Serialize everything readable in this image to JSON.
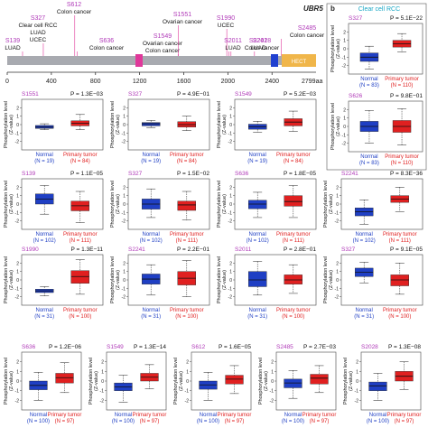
{
  "figure": {
    "gene": "UBR5",
    "panel_b_label": "b",
    "panel_b_title": "Clear cell RCC",
    "axis_end_label": "2799aa",
    "domain_label": "HECT"
  },
  "colors": {
    "site": "#b03ab8",
    "normal": "#1f3fc4",
    "tumor": "#e02020",
    "hect": "#f0b64a",
    "domain_blue": "#2040d0",
    "domain_pink": "#e0389a",
    "protein_bar": "#a8aab0",
    "cyan_title": "#17a6c4"
  },
  "mutation_sites": [
    {
      "site": "S139",
      "cancers": [
        "LUAD"
      ],
      "pos": 139
    },
    {
      "site": "S327",
      "cancers": [
        "Clear cell RCC",
        "LUAD",
        "UCEC"
      ],
      "pos": 327
    },
    {
      "site": "S612",
      "cancers": [
        "Colon cancer"
      ],
      "pos": 612
    },
    {
      "site": "S636",
      "cancers": [
        "Colon cancer"
      ],
      "pos": 636
    },
    {
      "site": "S1549",
      "cancers": [
        "Ovarian cancer",
        "Colon cancer"
      ],
      "pos": 1549
    },
    {
      "site": "S1551",
      "cancers": [
        "Ovarian cancer"
      ],
      "pos": 1551
    },
    {
      "site": "S1990",
      "cancers": [
        "UCEC"
      ],
      "pos": 1990
    },
    {
      "site": "S2011",
      "cancers": [
        "LUAD"
      ],
      "pos": 2011
    },
    {
      "site": "S2028",
      "cancers": [
        "Colon cancer"
      ],
      "pos": 2028
    },
    {
      "site": "S2241",
      "cancers": [
        "LUAD"
      ],
      "pos": 2241
    },
    {
      "site": "S2485",
      "cancers": [
        "Colon cancer"
      ],
      "pos": 2485
    }
  ],
  "chart_data": {
    "type": "box",
    "ylabel": "Phosphorylation level (Z-value)",
    "ylim": [
      -3,
      3
    ],
    "yticks": [
      -2,
      -1,
      0,
      1,
      2
    ],
    "protein_axis": {
      "ticks": [
        0,
        400,
        800,
        1200,
        1600,
        2000,
        2400
      ],
      "end": "2799aa"
    },
    "panels": [
      {
        "site": "S1551",
        "p": "1.3E−03",
        "normal_n": "N = 19",
        "tumor_n": "N = 84",
        "tumor_label": "Primary tumor",
        "normal_box": [
          -0.6,
          -0.45,
          -0.3,
          -0.1,
          0.1
        ],
        "tumor_box": [
          -0.6,
          -0.15,
          0.15,
          0.45,
          1.2
        ]
      },
      {
        "site": "S327",
        "p": "4.9E−01",
        "normal_n": "N = 19",
        "tumor_n": "N = 84",
        "tumor_label": "Primary tumor",
        "normal_box": [
          -0.4,
          -0.15,
          0.1,
          0.25,
          0.5
        ],
        "tumor_box": [
          -0.7,
          -0.3,
          0.0,
          0.35,
          1.0
        ]
      },
      {
        "site": "S1549",
        "p": "5.2E−03",
        "normal_n": "N = 19",
        "tumor_n": "N = 84",
        "tumor_label": "Primary tumor",
        "normal_box": [
          -0.9,
          -0.55,
          -0.25,
          0.05,
          0.4
        ],
        "tumor_box": [
          -0.8,
          -0.15,
          0.3,
          0.7,
          1.6
        ]
      },
      {
        "site": "S139",
        "p": "1.1E−05",
        "normal_n": "N = 102",
        "tumor_n": "N = 111",
        "tumor_label": "Primary tumor",
        "normal_box": [
          -1.2,
          0.0,
          0.6,
          1.2,
          2.2
        ],
        "tumor_box": [
          -2.2,
          -0.8,
          -0.2,
          0.35,
          1.5
        ]
      },
      {
        "site": "S327",
        "p": "1.5E−02",
        "normal_n": "N = 102",
        "tumor_n": "N = 111",
        "tumor_label": "Primary tumor",
        "normal_box": [
          -1.6,
          -0.6,
          0.0,
          0.6,
          1.8
        ],
        "tumor_box": [
          -1.9,
          -0.75,
          -0.1,
          0.35,
          1.5
        ]
      },
      {
        "site": "S636",
        "p": "1.8E−05",
        "normal_n": "N = 102",
        "tumor_n": "N = 111",
        "tumor_label": "Primary tumor",
        "normal_box": [
          -1.6,
          -0.55,
          0.0,
          0.45,
          1.4
        ],
        "tumor_box": [
          -1.6,
          -0.25,
          0.3,
          1.0,
          2.2
        ]
      },
      {
        "site": "S2241",
        "p": "8.3E−36",
        "normal_n": "N = 102",
        "tumor_n": "N = 111",
        "tumor_label": "Primary tumor",
        "normal_box": [
          -2.4,
          -1.4,
          -0.9,
          -0.45,
          0.5
        ],
        "tumor_box": [
          -0.9,
          0.2,
          0.6,
          1.0,
          2.0
        ]
      },
      {
        "site": "S1990",
        "p": "1.3E−11",
        "normal_n": "N = 31",
        "tumor_n": "N = 100",
        "tumor_label": "Primary tumor",
        "normal_box": [
          -1.9,
          -1.5,
          -1.3,
          -1.1,
          -0.8
        ],
        "tumor_box": [
          -1.7,
          -0.4,
          0.4,
          1.1,
          2.4
        ]
      },
      {
        "site": "S2241",
        "p": "2.2E−01",
        "normal_n": "N = 31",
        "tumor_n": "N = 100",
        "tumor_label": "Primary tumor",
        "normal_box": [
          -1.8,
          -0.5,
          0.1,
          0.7,
          1.8
        ],
        "tumor_box": [
          -2.0,
          -0.6,
          0.2,
          1.0,
          2.3
        ]
      },
      {
        "site": "S2011",
        "p": "2.8E−01",
        "normal_n": "N = 31",
        "tumor_n": "N = 100",
        "tumor_label": "Primary tumor",
        "normal_box": [
          -1.8,
          -0.8,
          0.0,
          1.0,
          2.2
        ],
        "tumor_box": [
          -1.6,
          -0.5,
          0.0,
          0.6,
          1.8
        ]
      },
      {
        "site": "S327",
        "p": "9.1E−05",
        "normal_n": "N = 31",
        "tumor_n": "N = 100",
        "tumor_label": "Primary tumor",
        "normal_box": [
          -0.4,
          0.4,
          0.9,
          1.4,
          2.1
        ],
        "tumor_box": [
          -1.7,
          -0.7,
          0.0,
          0.6,
          2.0
        ]
      },
      {
        "site": "S636",
        "p": "1.2E−06",
        "normal_n": "N = 100",
        "tumor_n": "N = 97",
        "tumor_label": "Primary tumor",
        "normal_box": [
          -2.0,
          -0.9,
          -0.45,
          0.0,
          0.9
        ],
        "tumor_box": [
          -1.2,
          -0.2,
          0.35,
          0.8,
          1.9
        ]
      },
      {
        "site": "S1549",
        "p": "1.3E−14",
        "normal_n": "N = 100",
        "tumor_n": "N = 97",
        "tumor_label": "Primary tumor",
        "normal_box": [
          -2.2,
          -1.0,
          -0.6,
          -0.2,
          0.6
        ],
        "tumor_box": [
          -0.8,
          0.0,
          0.4,
          0.8,
          1.7
        ]
      },
      {
        "site": "S612",
        "p": "1.6E−05",
        "normal_n": "N = 100",
        "tumor_n": "N = 97",
        "tumor_label": "Primary tumor",
        "normal_box": [
          -2.0,
          -0.85,
          -0.4,
          0.0,
          0.9
        ],
        "tumor_box": [
          -1.3,
          -0.3,
          0.2,
          0.6,
          1.6
        ]
      },
      {
        "site": "S2485",
        "p": "2.7E−03",
        "normal_n": "N = 100",
        "tumor_n": "N = 97",
        "tumor_label": "Primary tumor",
        "normal_box": [
          -1.8,
          -0.7,
          -0.2,
          0.2,
          1.1
        ],
        "tumor_box": [
          -1.2,
          -0.3,
          0.3,
          0.7,
          1.6
        ]
      },
      {
        "site": "S2028",
        "p": "1.3E−08",
        "normal_n": "N = 100",
        "tumor_n": "N = 97",
        "tumor_label": "Primary tumor",
        "normal_box": [
          -2.0,
          -1.0,
          -0.5,
          -0.1,
          0.8
        ],
        "tumor_box": [
          -0.9,
          0.0,
          0.5,
          1.0,
          2.0
        ]
      }
    ],
    "panel_b": [
      {
        "site": "S327",
        "p": "5.1E−22",
        "normal_n": "N = 83",
        "tumor_n": "N = 110",
        "tumor_label": "Primary tumor",
        "normal_box": [
          -2.4,
          -1.5,
          -1.0,
          -0.5,
          0.3
        ],
        "tumor_box": [
          -0.4,
          0.2,
          0.6,
          1.0,
          1.8
        ]
      },
      {
        "site": "S626",
        "p": "9.8E−01",
        "normal_n": "N = 83",
        "tumor_n": "N = 110",
        "tumor_label": "Primary tumor",
        "normal_box": [
          -2.0,
          -0.6,
          0.0,
          0.6,
          1.9
        ],
        "tumor_box": [
          -2.2,
          -0.7,
          0.0,
          0.7,
          2.1
        ]
      }
    ],
    "labels": {
      "normal": "Normal",
      "ylabel_line1": "Phosphorylation level",
      "ylabel_line2": "(Z-value)",
      "p_prefix": "P = "
    }
  }
}
